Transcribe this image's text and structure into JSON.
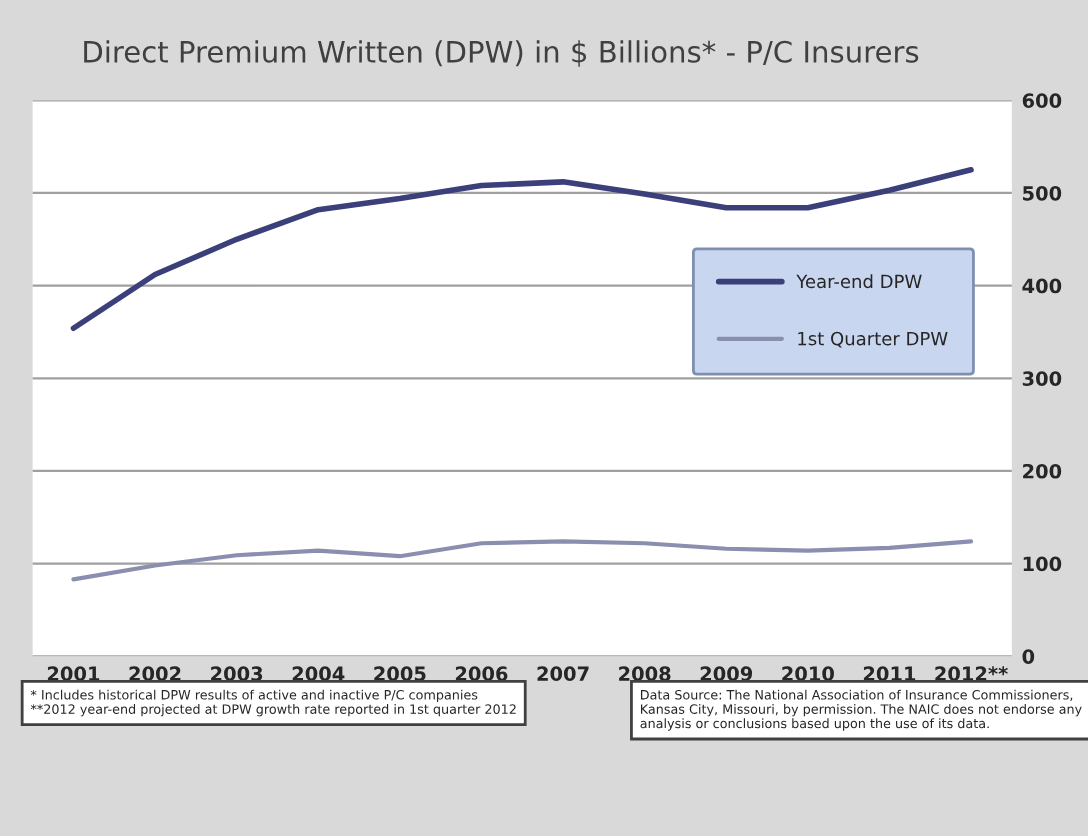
{
  "chart_data": {
    "type": "line",
    "title": "Direct Premium Written (DPW) in $ Billions* - P/C Insurers",
    "categories": [
      "2001",
      "2002",
      "2003",
      "2004",
      "2005",
      "2006",
      "2007",
      "2008",
      "2009",
      "2010",
      "2011",
      "2012**"
    ],
    "series": [
      {
        "name": "Year-end DPW",
        "color": "#3b3f7a",
        "values": [
          354,
          412,
          450,
          482,
          494,
          508,
          512,
          499,
          484,
          484,
          503,
          525
        ]
      },
      {
        "name": "1st Quarter DPW",
        "color": "#8a8fb0",
        "values": [
          83,
          98,
          109,
          114,
          108,
          122,
          124,
          122,
          116,
          114,
          117,
          124
        ]
      }
    ],
    "ylim": [
      0,
      600
    ],
    "yticks": [
      0,
      100,
      200,
      300,
      400,
      500,
      600
    ],
    "grid": "y",
    "legend": "right",
    "annotations": [
      "* Includes historical DPW results of active and inactive P/C companies\n**2012 year-end projected at DPW growth rate reported in 1st quarter 2012",
      "Data Source: The National Association of Insurance Commissioners, Kansas City, Missouri, by permission. The NAIC does not endorse any analysis or conclusions based upon the use of its data."
    ]
  }
}
